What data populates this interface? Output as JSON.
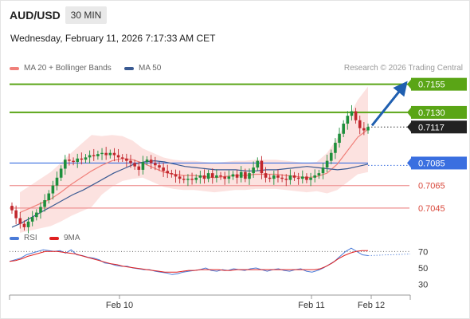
{
  "header": {
    "symbol": "AUD/USD",
    "timeframe": "30 MIN",
    "timestamp": "Wednesday, February 11, 2026 7:17:33 AM CET"
  },
  "legend": {
    "ma20": "MA 20 + Bollinger Bands",
    "ma20_color": "#f0807a",
    "ma50": "MA 50",
    "ma50_color": "#3a5a92",
    "credit": "Research © 2026 Trading Central"
  },
  "rsi_legend": {
    "rsi": "RSI",
    "rsi_color": "#4a7bd8",
    "ma": "9MA",
    "ma_color": "#e02020"
  },
  "colors": {
    "resistance": "#5aa516",
    "pivot": "#3a6fe0",
    "support": "#f0a0a0",
    "current": "#222222",
    "arrow": "#1f5fb0"
  },
  "chart_data": [
    {
      "type": "candlestick",
      "ylim": [
        0.7035,
        0.7159
      ],
      "x_ticks": [
        "Feb 10",
        "Feb 11",
        "Feb 12"
      ],
      "levels": [
        {
          "value": 0.7155,
          "label": "0.7155",
          "kind": "resistance"
        },
        {
          "value": 0.713,
          "label": "0.7130",
          "kind": "resistance"
        },
        {
          "value": 0.7117,
          "label": "0.7117",
          "kind": "current"
        },
        {
          "value": 0.7085,
          "label": "0.7085",
          "kind": "pivot"
        },
        {
          "value": 0.7065,
          "label": "0.7065",
          "kind": "support"
        },
        {
          "value": 0.7045,
          "label": "0.7045",
          "kind": "support"
        }
      ],
      "close": [
        0.7043,
        0.7036,
        0.7031,
        0.7028,
        0.7033,
        0.7037,
        0.7041,
        0.7046,
        0.7052,
        0.7058,
        0.7065,
        0.7072,
        0.708,
        0.7088,
        0.7087,
        0.7086,
        0.7089,
        0.7088,
        0.709,
        0.7092,
        0.7091,
        0.7093,
        0.7094,
        0.7092,
        0.7094,
        0.7092,
        0.709,
        0.7089,
        0.7087,
        0.7085,
        0.7082,
        0.7079,
        0.7086,
        0.7088,
        0.7085,
        0.7083,
        0.7081,
        0.7078,
        0.7076,
        0.7075,
        0.7073,
        0.7071,
        0.707,
        0.7071,
        0.707,
        0.7072,
        0.7074,
        0.7071,
        0.7076,
        0.7072,
        0.7074,
        0.7073,
        0.7071,
        0.7073,
        0.7075,
        0.7072,
        0.7077,
        0.7071,
        0.7076,
        0.7081,
        0.7087,
        0.7076,
        0.7072,
        0.7071,
        0.7074,
        0.7072,
        0.7071,
        0.707,
        0.7074,
        0.7072,
        0.7071,
        0.7073,
        0.707,
        0.7072,
        0.7074,
        0.7076,
        0.7081,
        0.7087,
        0.7094,
        0.7103,
        0.7111,
        0.712,
        0.7127,
        0.7131,
        0.7123,
        0.7116,
        0.7114,
        0.7117
      ],
      "ma20": [
        0.7041,
        0.7045,
        0.7049,
        0.7053,
        0.7059,
        0.7066,
        0.7072,
        0.7078,
        0.7083,
        0.7087,
        0.7089,
        0.7088,
        0.7085,
        0.7081,
        0.7077,
        0.7075,
        0.7074,
        0.7074,
        0.7073,
        0.7072,
        0.7073,
        0.7074,
        0.7074,
        0.7075,
        0.7075,
        0.7075,
        0.7074,
        0.7073,
        0.7072,
        0.7073,
        0.7076,
        0.7084,
        0.7096,
        0.7108,
        0.7115
      ],
      "ma50": [
        0.7028,
        0.7032,
        0.7037,
        0.7042,
        0.7047,
        0.7052,
        0.7057,
        0.7061,
        0.7066,
        0.7071,
        0.7076,
        0.708,
        0.7084,
        0.7086,
        0.7087,
        0.7086,
        0.7084,
        0.7082,
        0.7081,
        0.708,
        0.7079,
        0.7079,
        0.7079,
        0.7078,
        0.7078,
        0.7079,
        0.7079,
        0.708,
        0.7081,
        0.7082,
        0.7081,
        0.708,
        0.7079,
        0.708,
        0.7082,
        0.7084
      ]
    },
    {
      "type": "line",
      "name": "RSI",
      "ylim": [
        20,
        80
      ],
      "y_ticks": [
        70,
        50,
        30
      ],
      "rsi": [
        58,
        60,
        62,
        66,
        68,
        70,
        72,
        71,
        70,
        71,
        68,
        72,
        66,
        65,
        63,
        62,
        60,
        56,
        55,
        53,
        52,
        52,
        50,
        49,
        48,
        48,
        46,
        45,
        44,
        42,
        43,
        45,
        46,
        47,
        48,
        50,
        47,
        46,
        48,
        47,
        49,
        48,
        47,
        49,
        50,
        48,
        46,
        48,
        49,
        47,
        46,
        48,
        49,
        46,
        45,
        47,
        50,
        54,
        58,
        64,
        70,
        74,
        70,
        66,
        65
      ],
      "ma9": [
        58,
        59,
        61,
        64,
        66,
        68,
        70,
        70,
        70,
        69,
        68,
        67,
        65,
        63,
        61,
        59,
        57,
        55,
        54,
        52,
        51,
        50,
        49,
        48,
        47,
        46,
        45,
        45,
        45,
        46,
        47,
        47,
        48,
        48,
        48,
        48,
        47,
        47,
        48,
        48,
        48,
        48,
        48,
        48,
        48,
        48,
        48,
        48,
        48,
        48,
        48,
        48,
        49,
        52,
        56,
        61,
        65,
        68,
        70,
        71,
        71
      ]
    }
  ]
}
